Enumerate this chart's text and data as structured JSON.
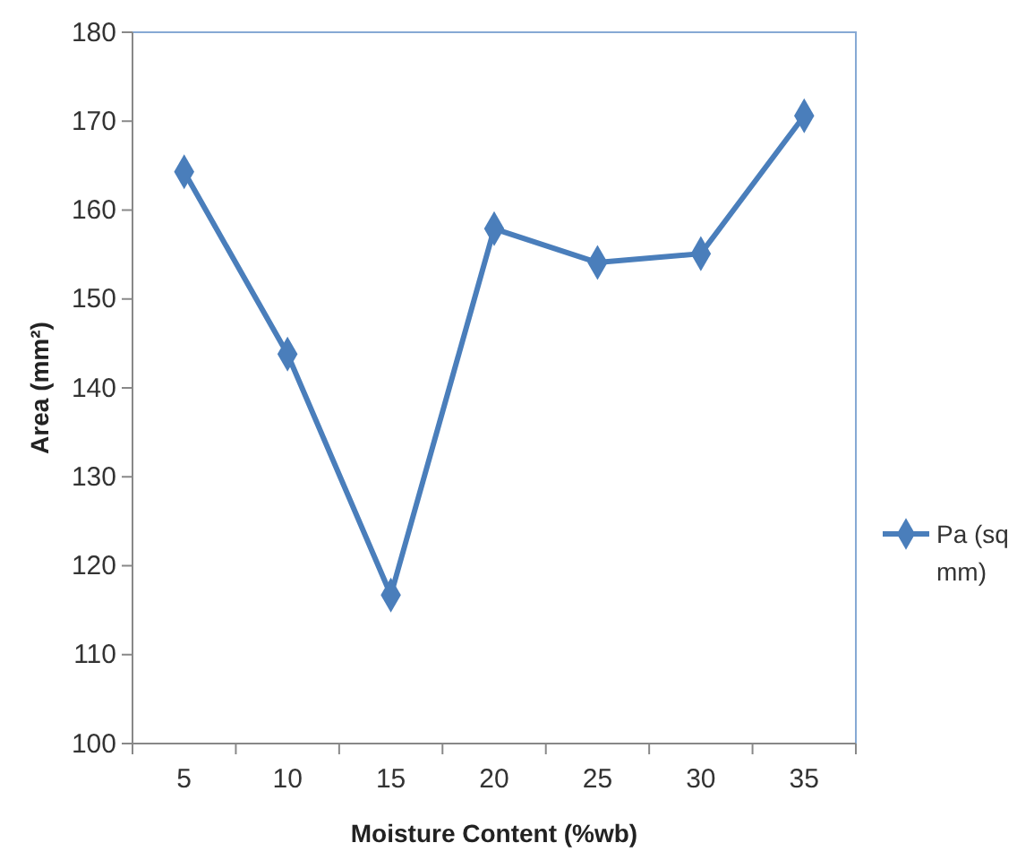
{
  "chart_data": {
    "type": "line",
    "xlabel": "Moisture Content (%wb)",
    "ylabel": "Area (mm²)",
    "categories": [
      "5",
      "10",
      "15",
      "20",
      "25",
      "30",
      "35"
    ],
    "series": [
      {
        "name": "Pa (sq mm)",
        "color": "#4a7ebb",
        "values": [
          164.3,
          143.8,
          116.7,
          157.9,
          154.1,
          155.1,
          170.6
        ]
      }
    ],
    "ylim": [
      100,
      180
    ],
    "yticks": [
      100,
      110,
      120,
      130,
      140,
      150,
      160,
      170,
      180
    ],
    "grid": false,
    "legend": "right",
    "marker": "diamond",
    "line_style": "solid"
  }
}
